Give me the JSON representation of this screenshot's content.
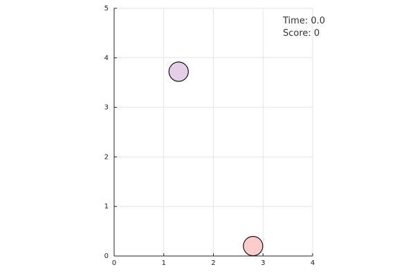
{
  "chart_data": {
    "type": "scatter",
    "title": "",
    "xlabel": "",
    "ylabel": "",
    "xlim": [
      0,
      4
    ],
    "ylim": [
      0,
      5
    ],
    "grid": true,
    "x_ticks": [
      "0",
      "1",
      "2",
      "3",
      "4"
    ],
    "y_ticks": [
      "0",
      "1",
      "2",
      "3",
      "4",
      "5"
    ],
    "points": [
      {
        "x": 1.3,
        "y": 3.72,
        "fill": "#e5cfe6",
        "stroke": "#111111"
      },
      {
        "x": 2.8,
        "y": 0.2,
        "fill": "#ffcccc",
        "stroke": "#111111"
      }
    ]
  },
  "status": {
    "time_text": "Time: 0.0",
    "score_text": "Score: 0"
  }
}
